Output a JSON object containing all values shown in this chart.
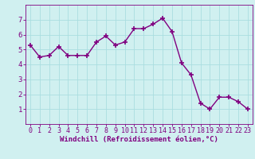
{
  "x": [
    0,
    1,
    2,
    3,
    4,
    5,
    6,
    7,
    8,
    9,
    10,
    11,
    12,
    13,
    14,
    15,
    16,
    17,
    18,
    19,
    20,
    21,
    22,
    23
  ],
  "y": [
    5.3,
    4.5,
    4.6,
    5.2,
    4.6,
    4.6,
    4.6,
    5.5,
    5.9,
    5.3,
    5.5,
    6.4,
    6.4,
    6.7,
    7.1,
    6.2,
    4.1,
    3.3,
    1.4,
    1.0,
    1.8,
    1.8,
    1.5,
    1.0
  ],
  "line_color": "#800080",
  "marker": "+",
  "marker_size": 4,
  "bg_color": "#d0f0f0",
  "grid_color": "#aadde0",
  "xlabel": "Windchill (Refroidissement éolien,°C)",
  "xlabel_color": "#800080",
  "xlim": [
    -0.5,
    23.5
  ],
  "ylim": [
    0,
    8
  ],
  "yticks": [
    1,
    2,
    3,
    4,
    5,
    6,
    7
  ],
  "xticks": [
    0,
    1,
    2,
    3,
    4,
    5,
    6,
    7,
    8,
    9,
    10,
    11,
    12,
    13,
    14,
    15,
    16,
    17,
    18,
    19,
    20,
    21,
    22,
    23
  ],
  "tick_color": "#800080",
  "spine_color": "#800080",
  "linewidth": 1.0,
  "tick_fontsize": 6.0,
  "xlabel_fontsize": 6.5
}
